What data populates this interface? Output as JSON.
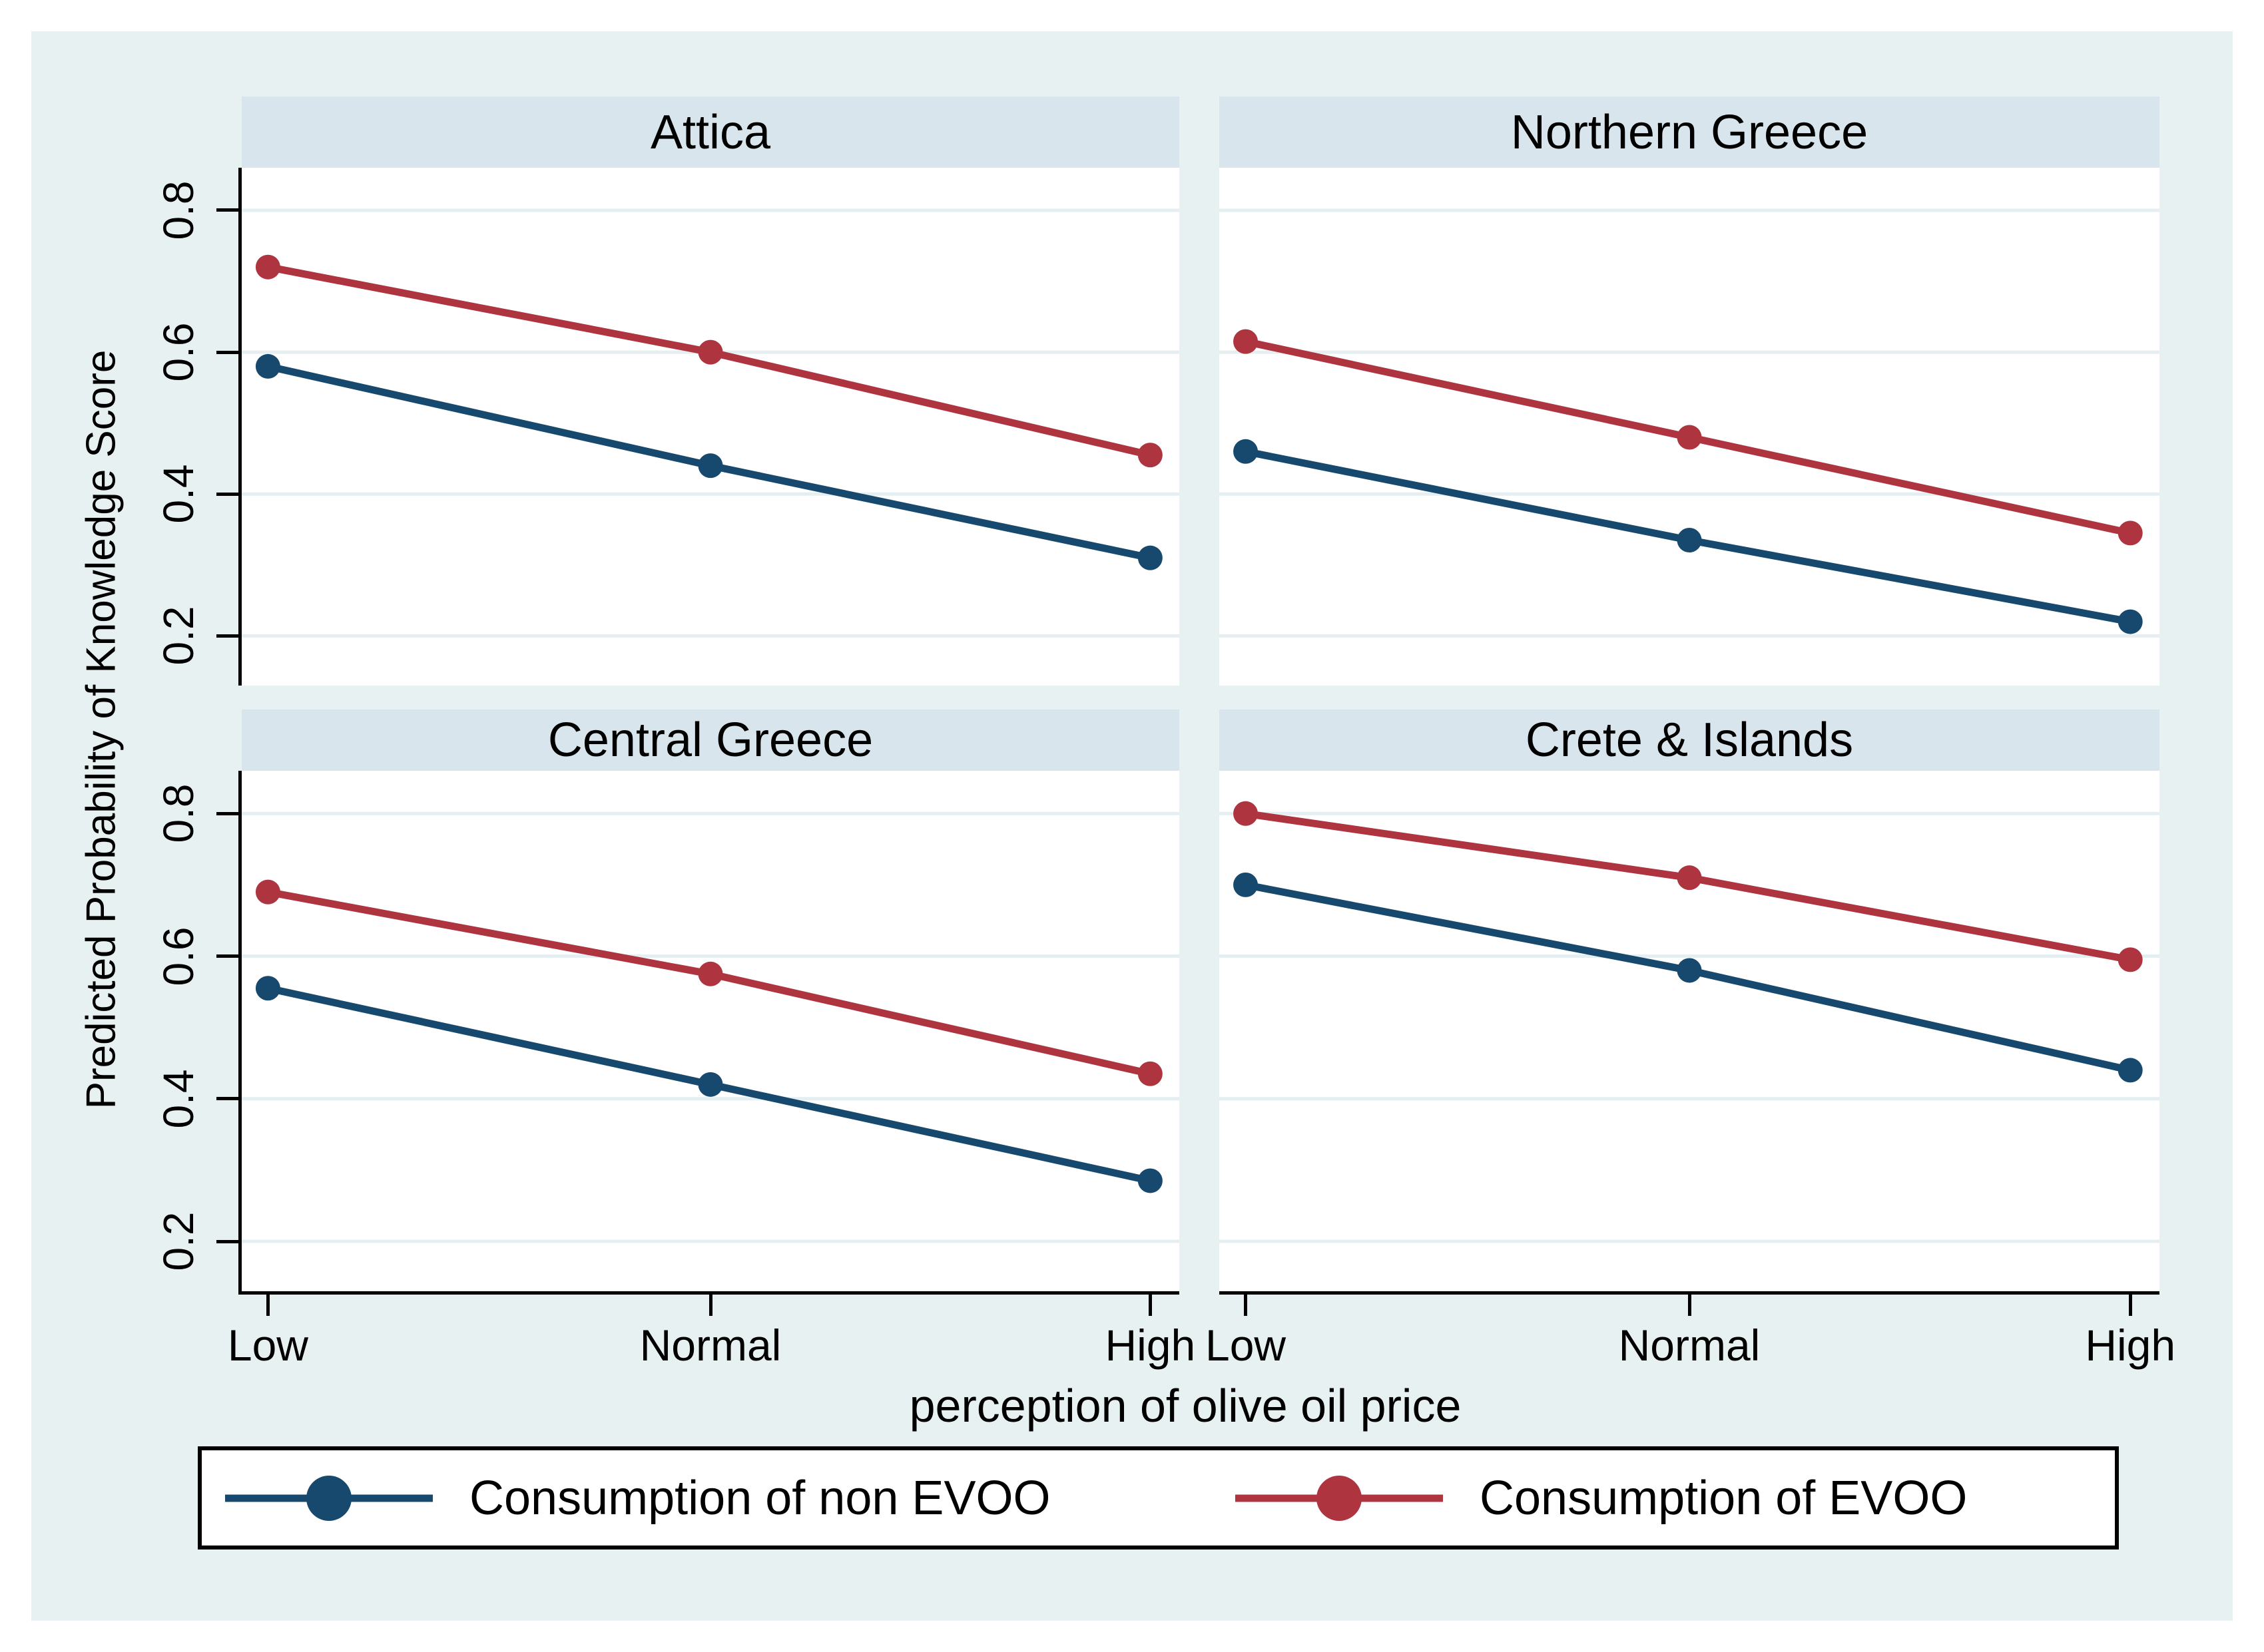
{
  "figure": {
    "background_color": "#ffffff",
    "region_color": "#e8f1f2",
    "band_color": "#d8e5ec"
  },
  "chart_data": {
    "type": "line",
    "categories": [
      "Low",
      "Normal",
      "High"
    ],
    "xlabel": "perception of olive oil price",
    "ylabel": "Predicted Probability of Knowledge Score",
    "ylim": [
      0.13,
      0.86
    ],
    "yticks": [
      0.8,
      0.6,
      0.4,
      0.2
    ],
    "ytick_labels": [
      "0.8",
      "0.6",
      "0.4",
      "0.2"
    ],
    "grid": true,
    "legend_position": "bottom",
    "marker": "circle",
    "panels": [
      {
        "title": "Attica",
        "series": [
          {
            "name": "Consumption of non EVOO",
            "values": [
              0.58,
              0.44,
              0.31
            ]
          },
          {
            "name": "Consumption of EVOO",
            "values": [
              0.72,
              0.6,
              0.455
            ]
          }
        ]
      },
      {
        "title": "Northern Greece",
        "series": [
          {
            "name": "Consumption of non EVOO",
            "values": [
              0.46,
              0.335,
              0.22
            ]
          },
          {
            "name": "Consumption of EVOO",
            "values": [
              0.615,
              0.48,
              0.345
            ]
          }
        ]
      },
      {
        "title": "Central Greece",
        "series": [
          {
            "name": "Consumption of non EVOO",
            "values": [
              0.555,
              0.42,
              0.285
            ]
          },
          {
            "name": "Consumption of EVOO",
            "values": [
              0.69,
              0.575,
              0.435
            ]
          }
        ]
      },
      {
        "title": "Crete & Islands",
        "series": [
          {
            "name": "Consumption of non EVOO",
            "values": [
              0.7,
              0.58,
              0.44
            ]
          },
          {
            "name": "Consumption of EVOO",
            "values": [
              0.8,
              0.71,
              0.595
            ]
          }
        ]
      }
    ],
    "colors": {
      "non_evoo": "#16496d",
      "evoo": "#ae3440",
      "gridline": "#e5eff2",
      "plot_background": "#ffffff",
      "axis": "#000000"
    }
  },
  "legend": {
    "items": [
      {
        "label": "Consumption of non EVOO",
        "color": "#16496d"
      },
      {
        "label": "Consumption of EVOO",
        "color": "#ae3440"
      }
    ]
  }
}
